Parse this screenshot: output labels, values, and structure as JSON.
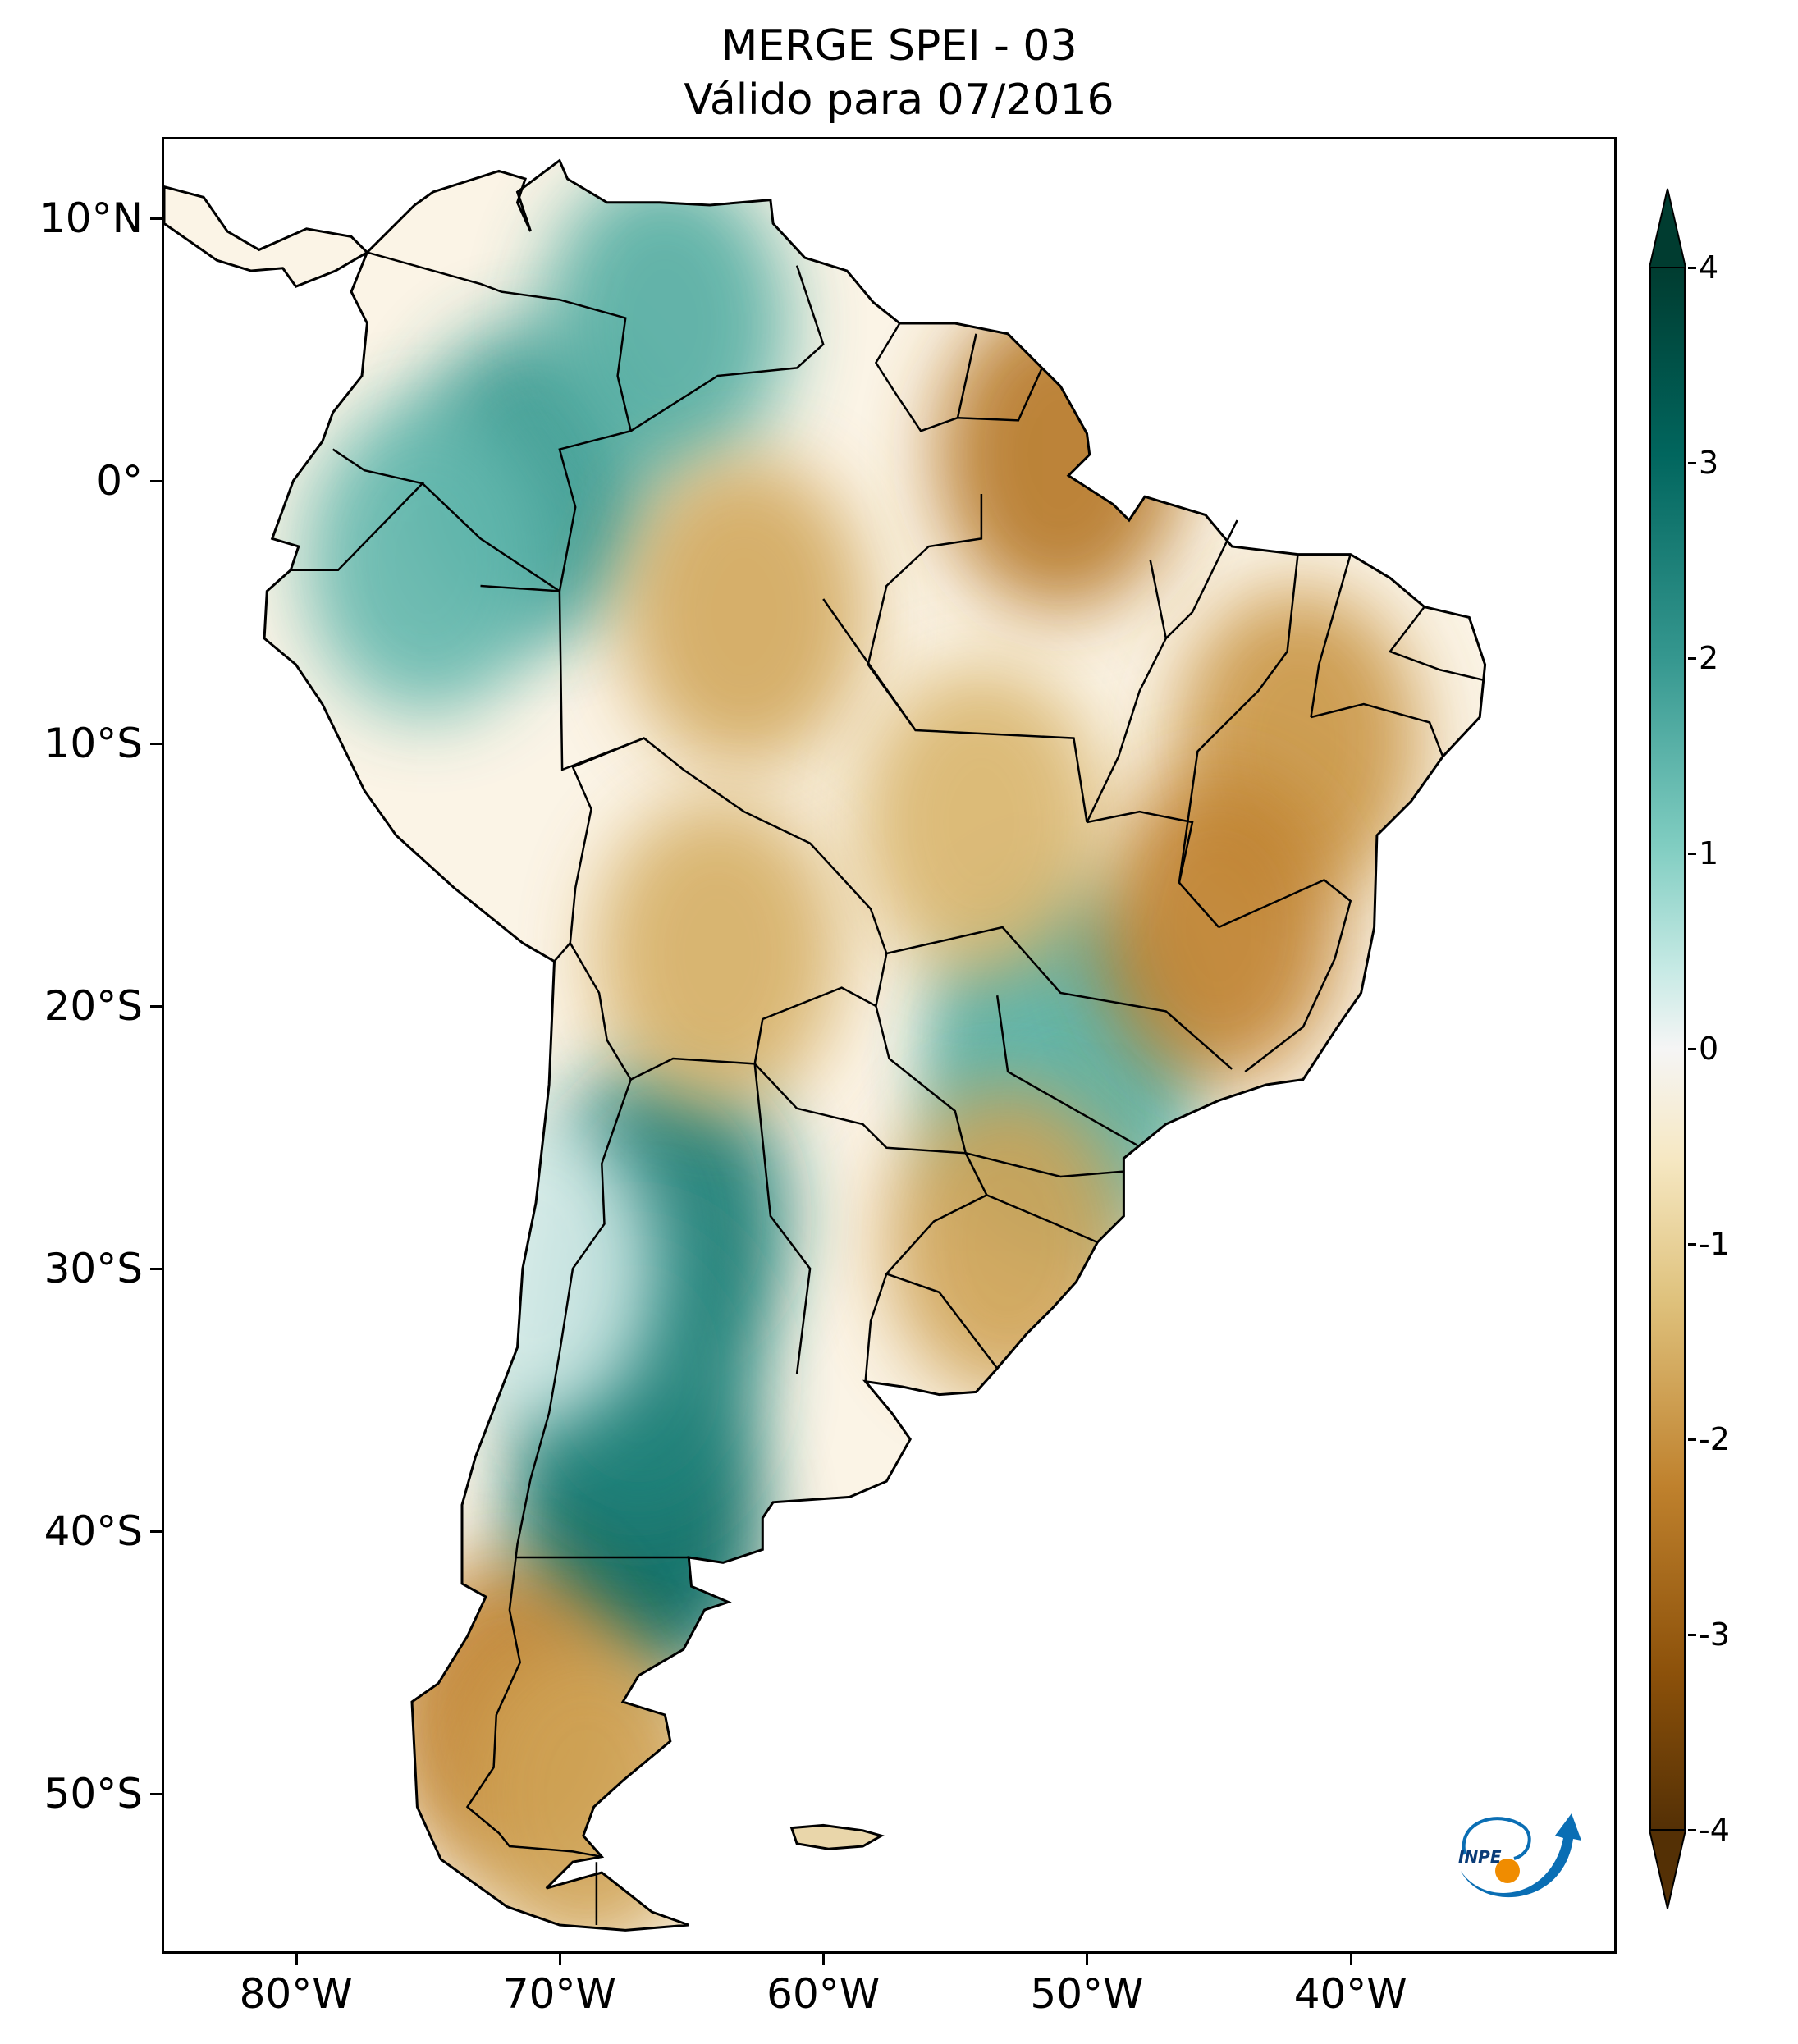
{
  "title": {
    "line1": "MERGE   SPEI - 03",
    "line2": "Válido para 07/2016"
  },
  "axes": {
    "lat_labels": [
      "10°N",
      "0°",
      "10°S",
      "20°S",
      "30°S",
      "40°S",
      "50°S"
    ],
    "lon_labels": [
      "80°W",
      "70°W",
      "60°W",
      "50°W",
      "40°W"
    ]
  },
  "colorbar": {
    "tick_labels": [
      "4",
      "3",
      "2",
      "1",
      "0",
      "-1",
      "-2",
      "-3",
      "-4"
    ],
    "range": [
      -4,
      4
    ],
    "colors": {
      "high": "#003c30",
      "mid_high": "#35978f",
      "neutral": "#f5f5f5",
      "mid_low": "#dfc27d",
      "low": "#543005"
    }
  },
  "logo": {
    "text": "INPE",
    "color_blue": "#0a6eb4",
    "color_orange": "#f08c00"
  },
  "chart_data": {
    "type": "heatmap",
    "title": "MERGE   SPEI - 03",
    "subtitle": "Válido para 07/2016",
    "xlabel": "",
    "ylabel": "",
    "xlim": [
      -85,
      -30
    ],
    "ylim": [
      -56,
      13
    ],
    "xticks": [
      -80,
      -70,
      -60,
      -50,
      -40
    ],
    "yticks": [
      10,
      0,
      -10,
      -20,
      -30,
      -40,
      -50
    ],
    "colorbar_ticks": [
      4,
      3,
      2,
      1,
      0,
      -1,
      -2,
      -3,
      -4
    ],
    "regions": [
      {
        "name": "north-argentina-wet",
        "lon": -66,
        "lat": -28,
        "spei": 2.6
      },
      {
        "name": "patagonia-north-wet",
        "lon": -67,
        "lat": -40,
        "spei": 3.0
      },
      {
        "name": "central-argentina-wet",
        "lon": -67,
        "lat": -34,
        "spei": 2.4
      },
      {
        "name": "west-amazon-wet",
        "lon": -71,
        "lat": 0,
        "spei": 2.0
      },
      {
        "name": "venezuela-wet",
        "lon": -66,
        "lat": 6,
        "spei": 1.6
      },
      {
        "name": "southeast-brazil-wet",
        "lon": -51,
        "lat": -21,
        "spei": 1.8
      },
      {
        "name": "parana-wet",
        "lon": -51,
        "lat": -24,
        "spei": 1.4
      },
      {
        "name": "peru-wet",
        "lon": -75,
        "lat": -3,
        "spei": 1.4
      },
      {
        "name": "central-amazon-dry",
        "lon": -63,
        "lat": -5,
        "spei": -1.4
      },
      {
        "name": "amapa-dry",
        "lon": -51,
        "lat": 1,
        "spei": -2.2
      },
      {
        "name": "northeast-brazil-dry",
        "lon": -42,
        "lat": -10,
        "spei": -1.7
      },
      {
        "name": "minas-gerais-dry",
        "lon": -45,
        "lat": -17,
        "spei": -2.0
      },
      {
        "name": "mato-grosso-dry",
        "lon": -54,
        "lat": -13,
        "spei": -1.2
      },
      {
        "name": "rio-grande-do-sul-dry",
        "lon": -53,
        "lat": -29,
        "spei": -1.5
      },
      {
        "name": "southern-chile-dry",
        "lon": -72,
        "lat": -47,
        "spei": -2.0
      },
      {
        "name": "patagonia-south-dry",
        "lon": -69,
        "lat": -50,
        "spei": -1.5
      },
      {
        "name": "bolivia-dry",
        "lon": -64,
        "lat": -18,
        "spei": -1.3
      },
      {
        "name": "chile-central-neutral",
        "lon": -71,
        "lat": -30,
        "spei": 0.3
      }
    ]
  }
}
